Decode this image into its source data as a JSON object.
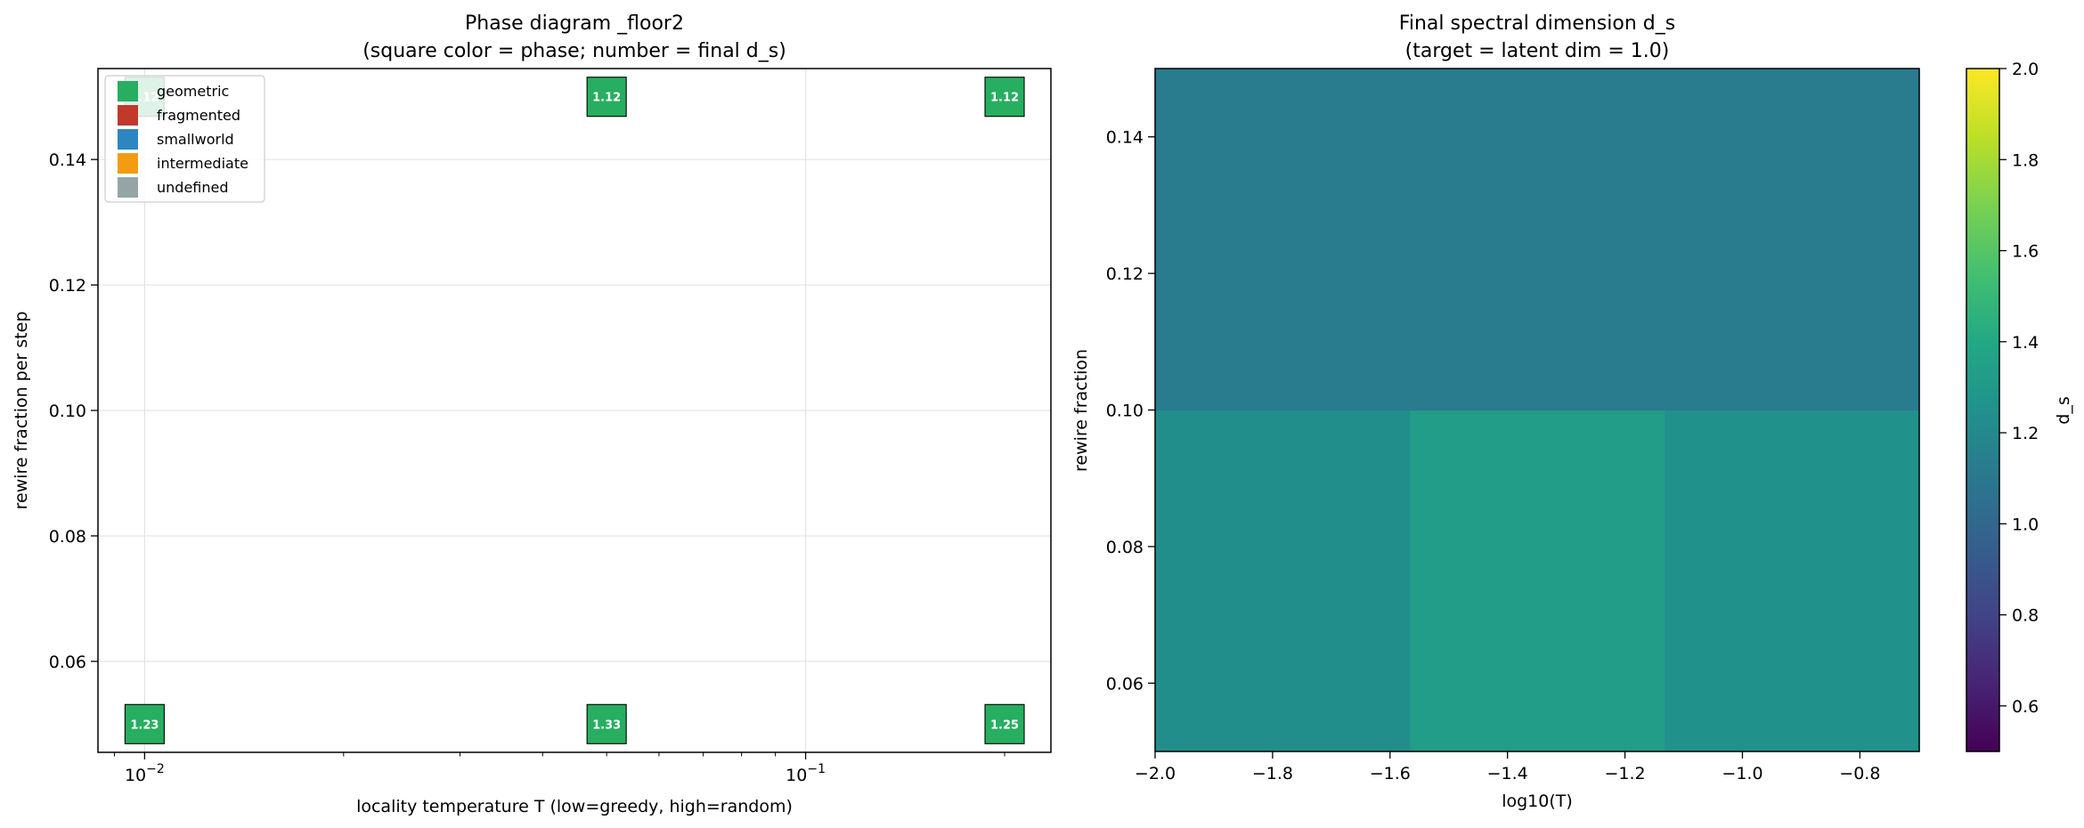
{
  "figure": {
    "left": {
      "title_line1": "Phase diagram _floor2",
      "title_line2": "(square color = phase; number = final d_s)"
    },
    "right": {
      "title_line1": "Final spectral dimension d_s",
      "title_line2": "(target = latent dim = 1.0)"
    }
  },
  "chart_data": [
    {
      "type": "scatter",
      "title": "Phase diagram _floor2\n(square color = phase; number = final d_s)",
      "xlabel": "locality temperature T  (low=greedy, high=random)",
      "ylabel": "rewire fraction per step",
      "x_scale": "log",
      "xlim": [
        0.0085,
        0.235
      ],
      "ylim": [
        0.0455,
        0.1545
      ],
      "x_ticks": [
        0.01,
        0.1
      ],
      "x_tick_labels": [
        "10",
        "10"
      ],
      "x_tick_exponents": [
        "−2",
        "−1"
      ],
      "y_ticks": [
        0.06,
        0.08,
        0.1,
        0.12,
        0.14
      ],
      "y_tick_labels": [
        "0.06",
        "0.08",
        "0.10",
        "0.12",
        "0.14"
      ],
      "grid": true,
      "legend_position": "top-left",
      "legend": [
        {
          "label": "geometric",
          "color": "#27ae60"
        },
        {
          "label": "fragmented",
          "color": "#c0392b"
        },
        {
          "label": "smallworld",
          "color": "#2e86c1"
        },
        {
          "label": "intermediate",
          "color": "#f39c12"
        },
        {
          "label": "undefined",
          "color": "#95a5a6"
        }
      ],
      "points": [
        {
          "x": 0.01,
          "y": 0.05,
          "phase": "geometric",
          "label": "1.23"
        },
        {
          "x": 0.05,
          "y": 0.05,
          "phase": "geometric",
          "label": "1.33"
        },
        {
          "x": 0.2,
          "y": 0.05,
          "phase": "geometric",
          "label": "1.25"
        },
        {
          "x": 0.01,
          "y": 0.15,
          "phase": "geometric",
          "label": "1.12"
        },
        {
          "x": 0.05,
          "y": 0.15,
          "phase": "geometric",
          "label": "1.12"
        },
        {
          "x": 0.2,
          "y": 0.15,
          "phase": "geometric",
          "label": "1.12"
        }
      ]
    },
    {
      "type": "heatmap",
      "title": "Final spectral dimension d_s\n(target = latent dim = 1.0)",
      "xlabel": "log10(T)",
      "ylabel": "rewire fraction",
      "xlim": [
        -2.0,
        -0.69897
      ],
      "ylim": [
        0.05,
        0.15
      ],
      "x_edges": [
        -2.0,
        -1.5661,
        -1.1325,
        -0.69897
      ],
      "y_edges": [
        0.05,
        0.1,
        0.15
      ],
      "values": [
        [
          1.23,
          1.33,
          1.25
        ],
        [
          1.12,
          1.12,
          1.12
        ]
      ],
      "x_ticks": [
        -2.0,
        -1.8,
        -1.6,
        -1.4,
        -1.2,
        -1.0,
        -0.8
      ],
      "x_tick_labels": [
        "−2.0",
        "−1.8",
        "−1.6",
        "−1.4",
        "−1.2",
        "−1.0",
        "−0.8"
      ],
      "y_ticks": [
        0.06,
        0.08,
        0.1,
        0.12,
        0.14
      ],
      "y_tick_labels": [
        "0.06",
        "0.08",
        "0.10",
        "0.12",
        "0.14"
      ],
      "colormap": "viridis",
      "colorbar": {
        "label": "d_s",
        "vmin": 0.5,
        "vmax": 2.0,
        "ticks": [
          0.6,
          0.8,
          1.0,
          1.2,
          1.4,
          1.6,
          1.8,
          2.0
        ],
        "tick_labels": [
          "0.6",
          "0.8",
          "1.0",
          "1.2",
          "1.4",
          "1.6",
          "1.8",
          "2.0"
        ]
      }
    }
  ]
}
